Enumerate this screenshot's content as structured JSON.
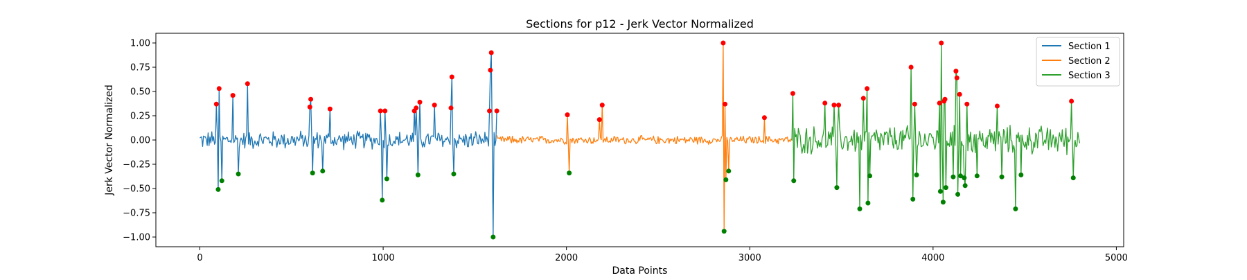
{
  "chart_data": {
    "type": "line",
    "title": "Sections for p12 - Jerk Vector Normalized",
    "xlabel": "Data Points",
    "ylabel": "Jerk Vector Normalized",
    "xlim": [
      -240,
      5040
    ],
    "ylim": [
      -1.1,
      1.1
    ],
    "xticks": [
      0,
      1000,
      2000,
      3000,
      4000,
      5000
    ],
    "xtick_labels": [
      "0",
      "1000",
      "2000",
      "3000",
      "4000",
      "5000"
    ],
    "yticks": [
      1.0,
      0.75,
      0.5,
      0.25,
      0.0,
      -0.25,
      -0.5,
      -0.75,
      -1.0
    ],
    "ytick_labels": [
      "1.00",
      "0.75",
      "0.50",
      "0.25",
      "0.00",
      "−0.25",
      "−0.50",
      "−0.75",
      "−1.00"
    ],
    "grid": false,
    "legend_position": "top-right",
    "series": [
      {
        "name": "Section 1",
        "color": "#1f77b4",
        "x_range": [
          0,
          1620
        ],
        "baseline_amplitude": 0.11,
        "spikes": [
          {
            "x": 90,
            "y": 0.37
          },
          {
            "x": 100,
            "y": -0.51
          },
          {
            "x": 105,
            "y": 0.53
          },
          {
            "x": 120,
            "y": -0.42
          },
          {
            "x": 180,
            "y": 0.46
          },
          {
            "x": 210,
            "y": -0.35
          },
          {
            "x": 260,
            "y": 0.58
          },
          {
            "x": 600,
            "y": 0.34
          },
          {
            "x": 605,
            "y": 0.42
          },
          {
            "x": 615,
            "y": -0.34
          },
          {
            "x": 670,
            "y": -0.32
          },
          {
            "x": 710,
            "y": 0.32
          },
          {
            "x": 985,
            "y": 0.3
          },
          {
            "x": 995,
            "y": -0.62
          },
          {
            "x": 1010,
            "y": 0.3
          },
          {
            "x": 1020,
            "y": -0.4
          },
          {
            "x": 1170,
            "y": 0.3
          },
          {
            "x": 1180,
            "y": 0.33
          },
          {
            "x": 1190,
            "y": -0.36
          },
          {
            "x": 1200,
            "y": 0.39
          },
          {
            "x": 1280,
            "y": 0.36
          },
          {
            "x": 1370,
            "y": 0.33
          },
          {
            "x": 1375,
            "y": 0.65
          },
          {
            "x": 1385,
            "y": -0.35
          },
          {
            "x": 1580,
            "y": 0.3
          },
          {
            "x": 1585,
            "y": 0.72
          },
          {
            "x": 1590,
            "y": 0.9
          },
          {
            "x": 1600,
            "y": -1.0
          },
          {
            "x": 1620,
            "y": 0.3
          }
        ]
      },
      {
        "name": "Section 2",
        "color": "#ff7f0e",
        "x_range": [
          1620,
          3230
        ],
        "baseline_amplitude": 0.05,
        "spikes": [
          {
            "x": 2005,
            "y": 0.26
          },
          {
            "x": 2015,
            "y": -0.34
          },
          {
            "x": 2180,
            "y": 0.21
          },
          {
            "x": 2195,
            "y": 0.36
          },
          {
            "x": 2855,
            "y": 1.0
          },
          {
            "x": 2860,
            "y": -0.94
          },
          {
            "x": 2865,
            "y": 0.37
          },
          {
            "x": 2870,
            "y": -0.41
          },
          {
            "x": 2885,
            "y": -0.32
          },
          {
            "x": 3080,
            "y": 0.23
          }
        ]
      },
      {
        "name": "Section 3",
        "color": "#2ca02c",
        "x_range": [
          3230,
          4800
        ],
        "baseline_amplitude": 0.17,
        "spikes": [
          {
            "x": 3235,
            "y": 0.48
          },
          {
            "x": 3240,
            "y": -0.42
          },
          {
            "x": 3410,
            "y": 0.38
          },
          {
            "x": 3460,
            "y": 0.36
          },
          {
            "x": 3475,
            "y": -0.49
          },
          {
            "x": 3485,
            "y": 0.36
          },
          {
            "x": 3600,
            "y": -0.71
          },
          {
            "x": 3620,
            "y": 0.43
          },
          {
            "x": 3640,
            "y": 0.53
          },
          {
            "x": 3645,
            "y": -0.65
          },
          {
            "x": 3655,
            "y": -0.37
          },
          {
            "x": 3880,
            "y": 0.75
          },
          {
            "x": 3890,
            "y": -0.61
          },
          {
            "x": 3900,
            "y": 0.37
          },
          {
            "x": 3910,
            "y": -0.36
          },
          {
            "x": 4035,
            "y": 0.38
          },
          {
            "x": 4040,
            "y": -0.53
          },
          {
            "x": 4045,
            "y": 1.0
          },
          {
            "x": 4055,
            "y": -0.64
          },
          {
            "x": 4060,
            "y": 0.4
          },
          {
            "x": 4065,
            "y": 0.42
          },
          {
            "x": 4070,
            "y": -0.49
          },
          {
            "x": 4110,
            "y": -0.38
          },
          {
            "x": 4125,
            "y": 0.71
          },
          {
            "x": 4130,
            "y": 0.64
          },
          {
            "x": 4135,
            "y": -0.56
          },
          {
            "x": 4145,
            "y": 0.47
          },
          {
            "x": 4150,
            "y": -0.37
          },
          {
            "x": 4170,
            "y": -0.39
          },
          {
            "x": 4175,
            "y": -0.47
          },
          {
            "x": 4185,
            "y": 0.37
          },
          {
            "x": 4240,
            "y": -0.37
          },
          {
            "x": 4350,
            "y": 0.35
          },
          {
            "x": 4375,
            "y": -0.38
          },
          {
            "x": 4450,
            "y": -0.71
          },
          {
            "x": 4480,
            "y": -0.36
          },
          {
            "x": 4755,
            "y": 0.4
          },
          {
            "x": 4765,
            "y": -0.39
          }
        ]
      }
    ],
    "peak_marker_color": "#ff0000",
    "trough_marker_color": "#008000"
  }
}
